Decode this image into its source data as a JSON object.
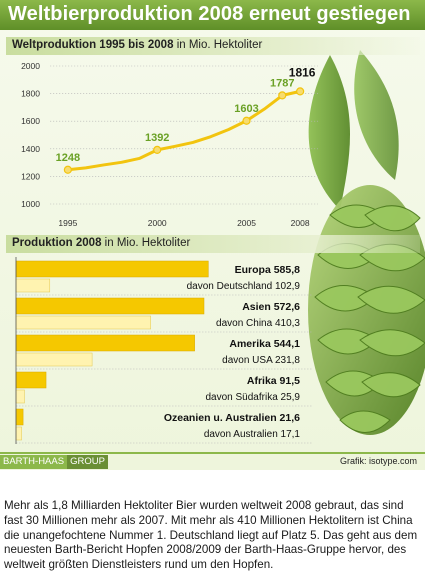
{
  "title": "Weltbierproduktion 2008 erneut gestiegen",
  "chart_data": [
    {
      "type": "line",
      "title": "Weltproduktion 1995 bis 2008",
      "unit": "in Mio. Hektoliter",
      "x": [
        1995,
        1996,
        1997,
        1998,
        1999,
        2000,
        2001,
        2002,
        2003,
        2004,
        2005,
        2006,
        2007,
        2008
      ],
      "values": [
        1248,
        1262,
        1283,
        1302,
        1330,
        1392,
        1418,
        1446,
        1488,
        1540,
        1603,
        1688,
        1787,
        1816
      ],
      "point_labels": [
        {
          "x": 1995,
          "value": "1248"
        },
        {
          "x": 2000,
          "value": "1392"
        },
        {
          "x": 2005,
          "value": "1603"
        },
        {
          "x": 2007,
          "value": "1787"
        },
        {
          "x": 2008,
          "value": "1816"
        }
      ],
      "x_ticks": [
        "1995",
        "2000",
        "2005",
        "2008"
      ],
      "x_tick_values": [
        1995,
        2000,
        2005,
        2008
      ],
      "y_ticks": [
        "2000",
        "1800",
        "1600",
        "1400",
        "1200",
        "1000"
      ],
      "y_tick_values": [
        2000,
        1800,
        1600,
        1400,
        1200,
        1000
      ],
      "ylim": [
        1000,
        2000
      ],
      "xlim": [
        1994,
        2009
      ],
      "grid": true,
      "colors": {
        "line": "#f2c40f",
        "marker": "#f7dc6f",
        "label": "#6aa125",
        "last_label": "#111111"
      }
    },
    {
      "type": "bar",
      "title": "Produktion 2008",
      "unit": "in Mio. Hektoliter",
      "xlim": [
        0,
        600
      ],
      "regions": [
        {
          "name": "Europa",
          "value": 585.8,
          "total_label": "Europa 585,8",
          "sub_label": "davon Deutschland 102,9",
          "sub_value": 102.9
        },
        {
          "name": "Asien",
          "value": 572.6,
          "total_label": "Asien 572,6",
          "sub_label": "davon China 410,3",
          "sub_value": 410.3
        },
        {
          "name": "Amerika",
          "value": 544.1,
          "total_label": "Amerika 544,1",
          "sub_label": "davon USA 231,8",
          "sub_value": 231.8
        },
        {
          "name": "Afrika",
          "value": 91.5,
          "total_label": "Afrika 91,5",
          "sub_label": "davon Südafrika 25,9",
          "sub_value": 25.9
        },
        {
          "name": "Ozeanien u. Australien",
          "value": 21.6,
          "total_label": "Ozeanien u. Australien 21,6",
          "sub_label": "davon Australien 17,1",
          "sub_value": 17.1
        }
      ],
      "colors": {
        "total": "#f5c800",
        "sub": "#fff3b0"
      }
    }
  ],
  "sections": {
    "line_title": "Weltproduktion 1995 bis 2008",
    "line_unit": "in Mio. Hektoliter",
    "bar_title": "Produktion 2008",
    "bar_unit": "in Mio. Hektoliter"
  },
  "footer": {
    "logo_a": "BARTH-HAAS",
    "logo_b": "GROUP",
    "source": "Grafik: isotype.com"
  },
  "body_text": "Mehr als 1,8 Milliarden Hektoliter Bier wurden weltweit 2008 gebraut, das sind fast 30 Millionen mehr als 2007. Mit mehr als 410 Millionen Hektolitern ist China die unangefochtene Nummer 1. Deutschland liegt auf Platz 5. Das geht aus dem neuesten Barth-Bericht Hopfen 2008/2009 der Barth-Haas-Gruppe hervor, des weltweit größten Dienstleisters rund um den Hopfen.",
  "colors": {
    "brand_green": "#8cb84a",
    "dark_green": "#5f8f28",
    "hop_green": "#7fae3e"
  },
  "icons": {
    "decoration": "hop-cone-illustration"
  }
}
